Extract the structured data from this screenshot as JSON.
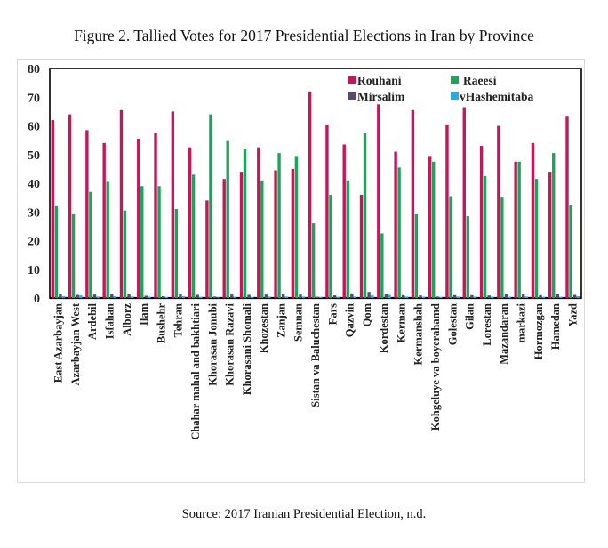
{
  "figure": {
    "title": "Figure 2. Tallied Votes for 2017 Presidential Elections in Iran by Province",
    "source": "Source: 2017 Iranian Presidential Election, n.d."
  },
  "colors": {
    "rouhani": "#c2185b",
    "raeesi": "#1aa55a",
    "mirsalim": "#5a4a6e",
    "hashemitaba": "#1eaee6"
  },
  "chart_data": {
    "type": "bar",
    "title": "Figure 2. Tallied Votes for 2017 Presidential Elections in Iran by Province",
    "xlabel": "",
    "ylabel": "",
    "ylim": [
      0,
      80
    ],
    "yticks": [
      0,
      10,
      20,
      30,
      40,
      50,
      60,
      70,
      80
    ],
    "grid": false,
    "legend_position": "top-right",
    "categories": [
      "East Azarbayjan",
      "Azarbayjan West",
      "Ardebil",
      "Isfahan",
      "Alborz",
      "Ilam",
      "Bushehr",
      "Tehran",
      "Chahar mahal and bakhtiari",
      "Khorasan Jonubi",
      "Khorasan Razavi",
      "Khorasani Shomali",
      "Khozestan",
      "Zanjan",
      "Semnan",
      "Sistan va Baluchestan",
      "Fars",
      "Qazvin",
      "Qom",
      "Kordestan",
      "Kerman",
      "Kermanshah",
      "Kohgeluye va boyerahamd",
      "Golestan",
      "Gilan",
      "Lorestan",
      "Mazandaran",
      "markazi",
      "Hormozgan",
      "Hamedan",
      "Yazd"
    ],
    "series": [
      {
        "name": "Rouhani",
        "values": [
          62,
          64,
          58.5,
          54,
          65.5,
          55.5,
          57.5,
          65,
          52.5,
          34,
          41.5,
          44,
          52.5,
          44.5,
          45,
          72,
          60.5,
          53.5,
          36,
          67.5,
          51,
          65.5,
          49.5,
          60.5,
          66.5,
          53,
          60,
          47.5,
          54,
          44,
          63.5
        ]
      },
      {
        "name": "Raeesi",
        "values": [
          32,
          29.5,
          37,
          40.5,
          30.5,
          39,
          39,
          31,
          43,
          64,
          55,
          52,
          41,
          50.5,
          49.5,
          26,
          36,
          41,
          57.5,
          22.5,
          45.5,
          29.5,
          47.5,
          35.5,
          28.5,
          42.5,
          35,
          47.5,
          41.5,
          50.5,
          32.5
        ]
      },
      {
        "name": "Mirsalim",
        "values": [
          1.3,
          1.1,
          1.2,
          1.3,
          1.3,
          0.8,
          0.6,
          1.3,
          1.1,
          0.5,
          1.2,
          1.1,
          1.2,
          1.5,
          1.2,
          0.4,
          0.9,
          1.6,
          2.1,
          1.4,
          1.0,
          0.9,
          0.5,
          1.0,
          1.0,
          0.9,
          1.3,
          1.4,
          1.0,
          1.4,
          1.1
        ]
      },
      {
        "name": "vHashemitaba",
        "values": [
          0.6,
          0.9,
          0.5,
          0.6,
          0.5,
          0.4,
          0.3,
          0.6,
          0.4,
          0.2,
          0.4,
          0.3,
          0.5,
          0.5,
          0.5,
          0.3,
          0.4,
          0.5,
          0.9,
          1.1,
          0.5,
          0.4,
          0.3,
          0.5,
          0.4,
          0.4,
          0.4,
          0.5,
          0.4,
          0.4,
          0.6
        ]
      }
    ]
  }
}
